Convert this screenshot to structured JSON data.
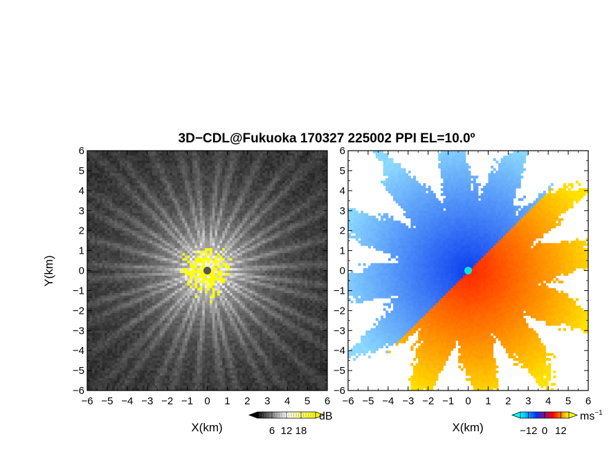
{
  "title": "3D−CDL@Fukuoka 170327 225002 PPI EL=10.0º",
  "chart_data": [
    {
      "type": "heatmap",
      "name": "reflectivity-ppi",
      "xlabel": "X(km)",
      "ylabel": "Y(km)",
      "xlim": [
        -6,
        6
      ],
      "ylim": [
        -6,
        6
      ],
      "x_ticks": [
        -6,
        -5,
        -4,
        -3,
        -2,
        -1,
        0,
        1,
        2,
        3,
        4,
        5,
        6
      ],
      "y_ticks": [
        -6,
        -5,
        -4,
        -3,
        -2,
        -1,
        0,
        1,
        2,
        3,
        4,
        5,
        6
      ],
      "x_tick_labels": [
        "−6",
        "−5",
        "−4",
        "−3",
        "−2",
        "−1",
        "0",
        "1",
        "2",
        "3",
        "4",
        "5",
        "6"
      ],
      "y_tick_labels": [
        "−6",
        "−5",
        "−4",
        "−3",
        "−2",
        "−1",
        "0",
        "1",
        "2",
        "3",
        "4",
        "5",
        "6"
      ],
      "colorbar": {
        "unit": "dB",
        "ticks": [
          6,
          12,
          18
        ],
        "tick_labels": [
          "6",
          "12",
          "18"
        ],
        "range": [
          0,
          24
        ],
        "colors": [
          "#000000",
          "#ffffff",
          "#ffff00"
        ]
      },
      "palette": {
        "low": "#111111",
        "high": "#f4f4f4",
        "saturated": "#ffff00",
        "center": "#555555"
      }
    },
    {
      "type": "heatmap",
      "name": "doppler-velocity-ppi",
      "xlabel": "X(km)",
      "xlim": [
        -6,
        6
      ],
      "ylim": [
        -6,
        6
      ],
      "x_ticks": [
        -6,
        -5,
        -4,
        -3,
        -2,
        -1,
        0,
        1,
        2,
        3,
        4,
        5,
        6
      ],
      "y_ticks": [
        -6,
        -5,
        -4,
        -3,
        -2,
        -1,
        0,
        1,
        2,
        3,
        4,
        5,
        6
      ],
      "x_tick_labels": [
        "−6",
        "−5",
        "−4",
        "−3",
        "−2",
        "−1",
        "0",
        "1",
        "2",
        "3",
        "4",
        "5",
        "6"
      ],
      "y_tick_labels": [
        "−6",
        "−5",
        "−4",
        "−3",
        "−2",
        "−1",
        "0",
        "1",
        "2",
        "3",
        "4",
        "5",
        "6"
      ],
      "colorbar": {
        "unit": "ms",
        "unit_exponent": "−1",
        "ticks": [
          -12,
          0,
          12
        ],
        "tick_labels": [
          "−12",
          "0",
          "12"
        ],
        "range": [
          -18,
          18
        ],
        "colors": [
          "#00ffff",
          "#0030ff",
          "#ff0000",
          "#ffff00"
        ]
      },
      "palette": {
        "approaching_far": "#8fdcff",
        "approaching_near": "#0a3cf0",
        "receding_near": "#ff1e00",
        "receding_far": "#ffe600",
        "center": "#00e5e5"
      }
    }
  ]
}
